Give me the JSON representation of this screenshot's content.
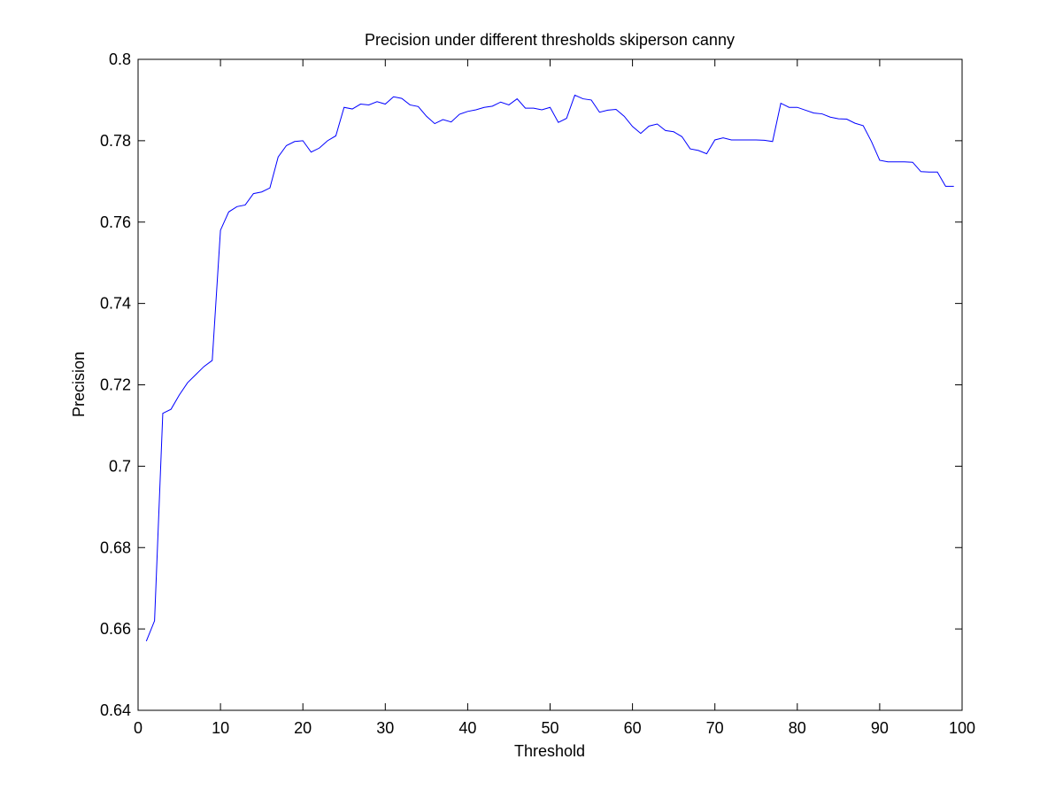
{
  "chart_data": {
    "type": "line",
    "title": "Precision under different thresholds skiperson canny",
    "xlabel": "Threshold",
    "ylabel": "Precision",
    "xlim": [
      0,
      100
    ],
    "ylim": [
      0.64,
      0.8
    ],
    "xticks": [
      0,
      10,
      20,
      30,
      40,
      50,
      60,
      70,
      80,
      90,
      100
    ],
    "xtick_labels": [
      "0",
      "10",
      "20",
      "30",
      "40",
      "50",
      "60",
      "70",
      "80",
      "90",
      "100"
    ],
    "yticks": [
      0.64,
      0.66,
      0.68,
      0.7,
      0.72,
      0.74,
      0.76,
      0.78,
      0.8
    ],
    "ytick_labels": [
      "0.64",
      "0.66",
      "0.68",
      "0.7",
      "0.72",
      "0.74",
      "0.76",
      "0.78",
      "0.8"
    ],
    "grid": false,
    "line_color": "#0000ff",
    "series": [
      {
        "x": [
          1,
          2,
          3,
          4,
          5,
          6,
          7,
          8,
          9,
          10,
          11,
          12,
          13,
          14,
          15,
          16,
          17,
          18,
          19,
          20,
          21,
          22,
          23,
          24,
          25,
          26,
          27,
          28,
          29,
          30,
          31,
          32,
          33,
          34,
          35,
          36,
          37,
          38,
          39,
          40,
          41,
          42,
          43,
          44,
          45,
          46,
          47,
          48,
          49,
          50,
          51,
          52,
          53,
          54,
          55,
          56,
          57,
          58,
          59,
          60,
          61,
          62,
          63,
          64,
          65,
          66,
          67,
          68,
          69,
          70,
          71,
          72,
          73,
          74,
          75,
          76,
          77,
          78,
          79,
          80,
          81,
          82,
          83,
          84,
          85,
          86,
          87,
          88,
          89,
          90,
          91,
          92,
          93,
          94,
          95,
          96,
          97,
          98,
          99
        ],
        "values": [
          0.657,
          0.662,
          0.713,
          0.714,
          0.7175,
          0.7205,
          0.7225,
          0.7245,
          0.726,
          0.758,
          0.7625,
          0.7638,
          0.7642,
          0.767,
          0.7674,
          0.7684,
          0.776,
          0.7788,
          0.7798,
          0.78,
          0.7772,
          0.7782,
          0.78,
          0.7812,
          0.7882,
          0.7878,
          0.789,
          0.7888,
          0.7896,
          0.789,
          0.7908,
          0.7904,
          0.7888,
          0.7884,
          0.786,
          0.7842,
          0.7852,
          0.7846,
          0.7865,
          0.7872,
          0.7876,
          0.7882,
          0.7885,
          0.7895,
          0.7888,
          0.7903,
          0.788,
          0.788,
          0.7876,
          0.7882,
          0.7845,
          0.7855,
          0.7912,
          0.7903,
          0.79,
          0.787,
          0.7875,
          0.7877,
          0.786,
          0.7835,
          0.7818,
          0.7836,
          0.7841,
          0.7825,
          0.7822,
          0.781,
          0.778,
          0.7776,
          0.7768,
          0.7802,
          0.7807,
          0.7802,
          0.7802,
          0.7802,
          0.7802,
          0.7801,
          0.7798,
          0.7892,
          0.7882,
          0.7882,
          0.7875,
          0.7868,
          0.7866,
          0.7858,
          0.7854,
          0.7853,
          0.7843,
          0.7837,
          0.7798,
          0.7752,
          0.7748,
          0.7748,
          0.7748,
          0.7747,
          0.7724,
          0.7723,
          0.7723,
          0.7688,
          0.7688
        ]
      }
    ]
  }
}
